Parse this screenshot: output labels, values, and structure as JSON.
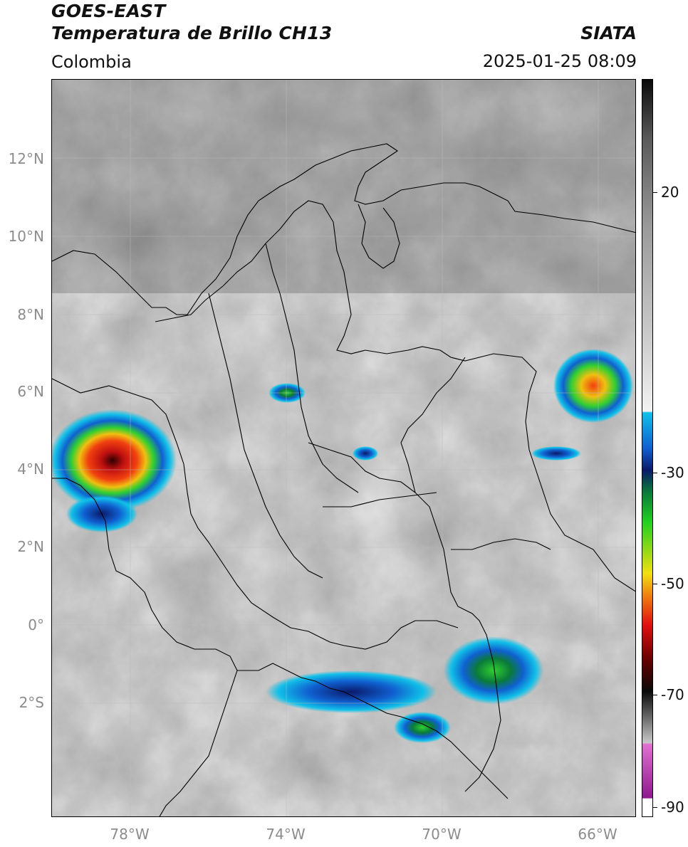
{
  "header": {
    "satellite": "GOES-EAST",
    "product": "Temperatura de Brillo CH13",
    "region": "Colombia",
    "agency": "SIATA",
    "datetime": "2025-01-25 08:09"
  },
  "axes": {
    "lat_labels": [
      "12°N",
      "10°N",
      "8°N",
      "6°N",
      "4°N",
      "2°N",
      "0°",
      "2°S"
    ],
    "lon_labels": [
      "78°W",
      "74°W",
      "70°W",
      "66°W"
    ]
  },
  "colorbar": {
    "ticks": [
      "20",
      "-30",
      "-50",
      "-70",
      "-90"
    ],
    "colors": {
      "white": "#ffffff",
      "purple": "#8e1a8e",
      "magenta": "#e070d0",
      "gray_light": "#c8c8c8",
      "black": "#0a0a0a",
      "dark_red": "#600000",
      "red": "#e01010",
      "orange": "#f08010",
      "yellow": "#f0e010",
      "green": "#20d020",
      "dark_green": "#0a7a3a",
      "navy": "#0a1a6a",
      "blue": "#1060d0",
      "cyan": "#10c0e8"
    }
  }
}
